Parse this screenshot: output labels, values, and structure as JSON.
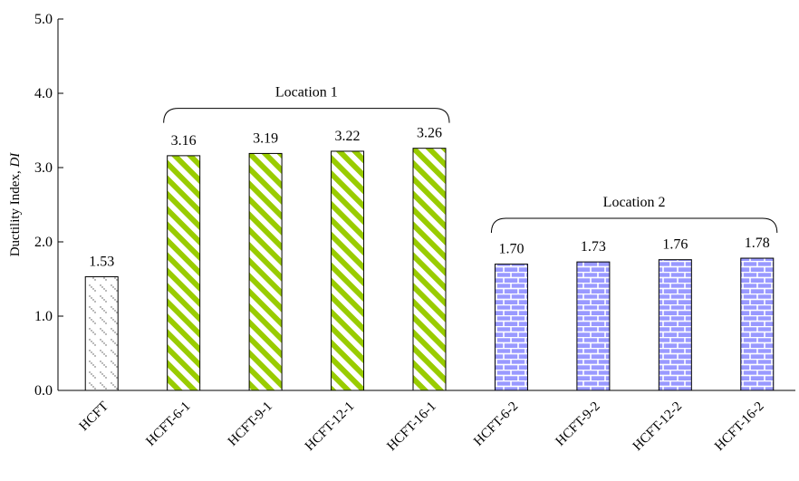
{
  "chart_data": {
    "type": "bar",
    "ylabel": "Ductility Index, ",
    "ylabel_italic": "DI",
    "ylim": [
      0,
      5
    ],
    "yticks": [
      "0.0",
      "1.0",
      "2.0",
      "3.0",
      "4.0",
      "5.0"
    ],
    "grid": false,
    "categories": [
      "HCFT",
      "HCFT-6-1",
      "HCFT-9-1",
      "HCFT-12-1",
      "HCFT-16-1",
      "HCFT-6-2",
      "HCFT-9-2",
      "HCFT-12-2",
      "HCFT-16-2"
    ],
    "values": [
      1.53,
      3.16,
      3.19,
      3.22,
      3.26,
      1.7,
      1.73,
      1.76,
      1.78
    ],
    "value_labels": [
      "1.53",
      "3.16",
      "3.19",
      "3.22",
      "3.26",
      "1.70",
      "1.73",
      "1.76",
      "1.78"
    ],
    "bar_patterns": [
      "dots",
      "diagonal",
      "diagonal",
      "diagonal",
      "diagonal",
      "brick",
      "brick",
      "brick",
      "brick"
    ],
    "groups": [
      {
        "label": "Location 1",
        "from": 1,
        "to": 4
      },
      {
        "label": "Location 2",
        "from": 5,
        "to": 8
      }
    ],
    "colors": {
      "diagonal": "#99cc00",
      "brick": "#9999ff",
      "axis": "#000000"
    }
  }
}
